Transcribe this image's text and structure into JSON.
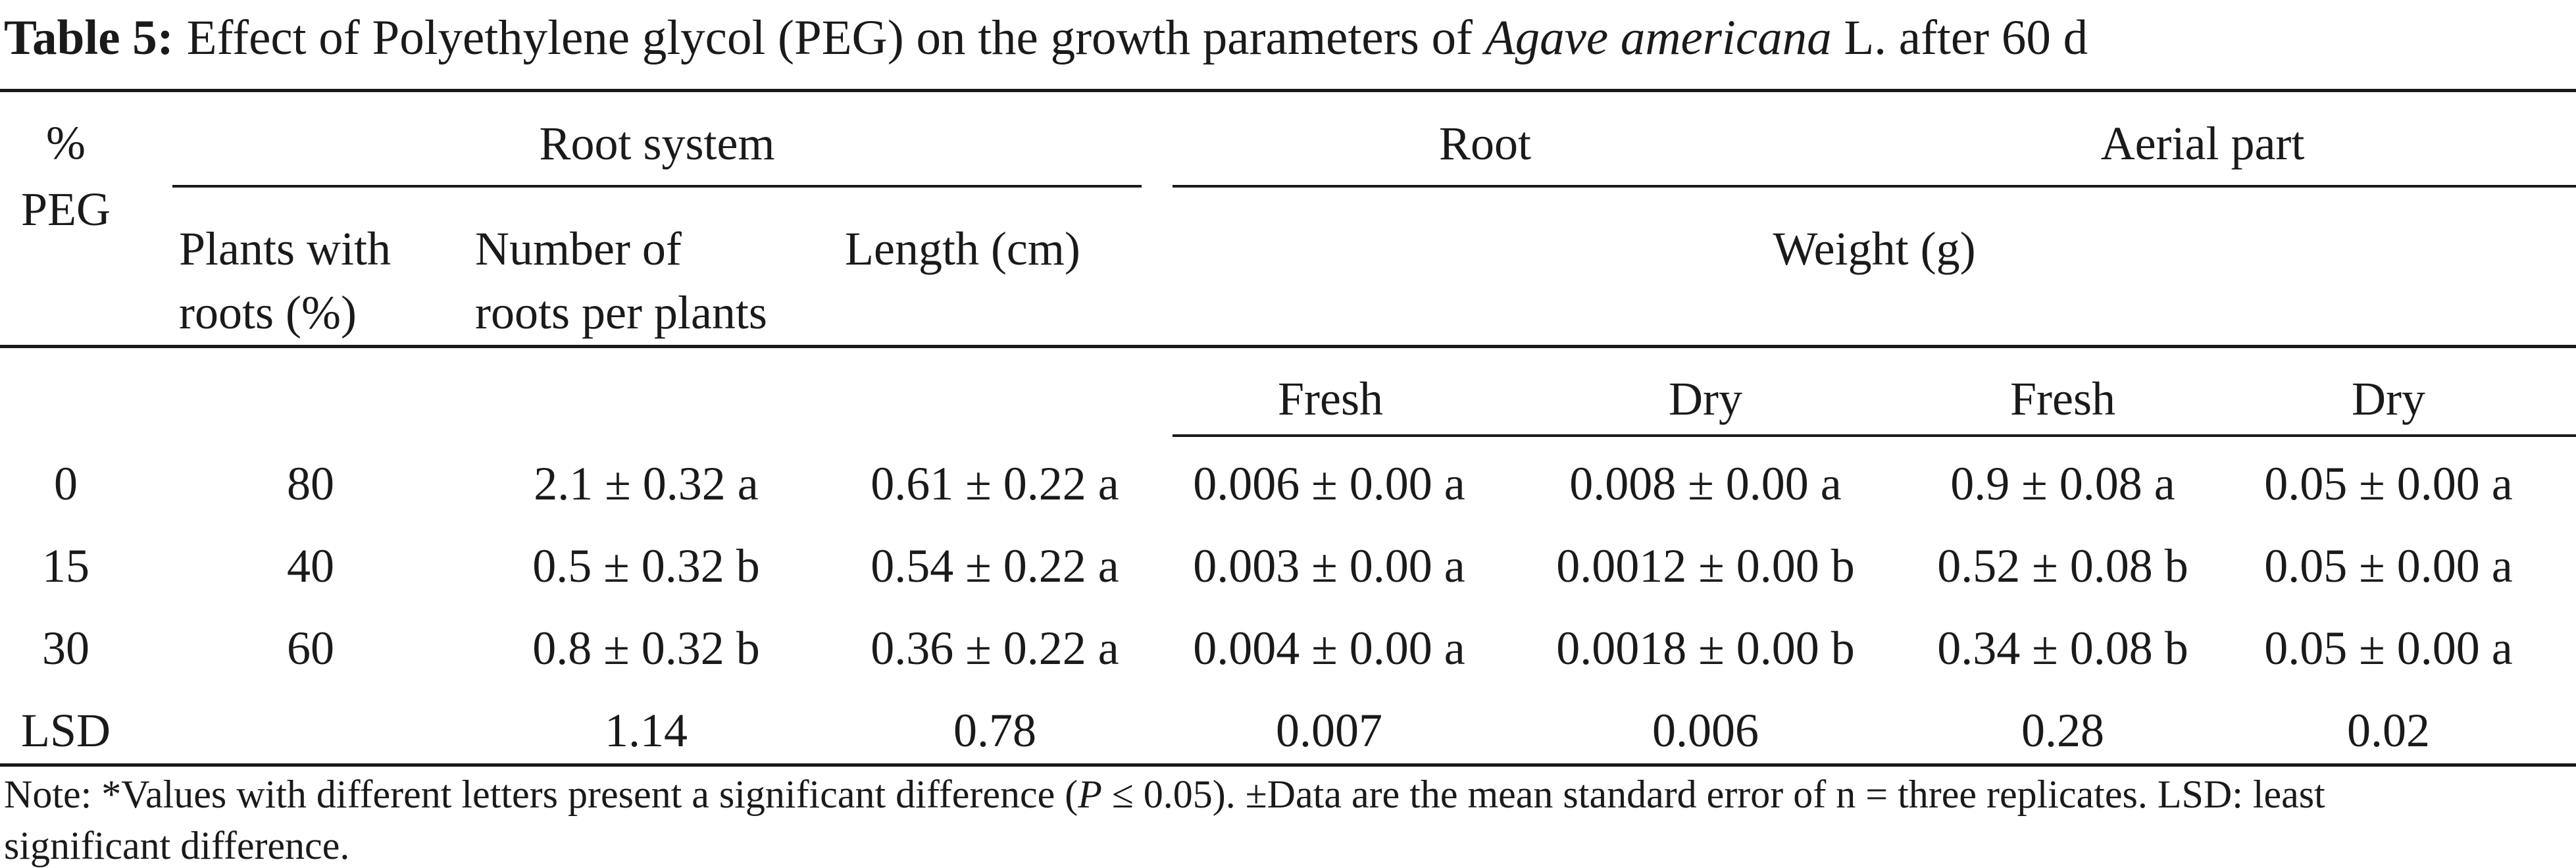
{
  "caption": {
    "label": "Table 5:",
    "text_before": "Effect of Polyethylene glycol (PEG) on the growth parameters of ",
    "species": "Agave americana",
    "text_after": " L. after 60 d"
  },
  "headers": {
    "peg": [
      "%",
      "PEG"
    ],
    "root_system": "Root system",
    "root": "Root",
    "aerial_part": "Aerial part",
    "plants_with_roots": [
      "Plants with",
      "roots (%)"
    ],
    "number_of_roots": [
      "Number of",
      "roots per plants"
    ],
    "length": "Length (cm)",
    "weight": "Weight (g)",
    "root_fresh": "Fresh",
    "root_dry": "Dry",
    "aerial_fresh": "Fresh",
    "aerial_dry": "Dry"
  },
  "rows": [
    {
      "peg": "0",
      "plants": "80",
      "number": "2.1 ± 0.32 a",
      "length": "0.61 ± 0.22 a",
      "root_fresh": "0.006 ± 0.00 a",
      "root_dry": "0.008 ± 0.00 a",
      "aerial_fresh": "0.9 ± 0.08 a",
      "aerial_dry": "0.05 ± 0.00 a"
    },
    {
      "peg": "15",
      "plants": "40",
      "number": "0.5 ± 0.32 b",
      "length": "0.54 ± 0.22 a",
      "root_fresh": "0.003 ± 0.00 a",
      "root_dry": "0.0012 ± 0.00 b",
      "aerial_fresh": "0.52 ± 0.08 b",
      "aerial_dry": "0.05 ± 0.00 a"
    },
    {
      "peg": "30",
      "plants": "60",
      "number": "0.8 ± 0.32 b",
      "length": "0.36 ± 0.22 a",
      "root_fresh": "0.004 ± 0.00 a",
      "root_dry": "0.0018 ± 0.00 b",
      "aerial_fresh": "0.34 ± 0.08 b",
      "aerial_dry": "0.05 ± 0.00 a"
    },
    {
      "peg": "LSD",
      "plants": "",
      "number": "1.14",
      "length": "0.78",
      "root_fresh": "0.007",
      "root_dry": "0.006",
      "aerial_fresh": "0.28",
      "aerial_dry": "0.02"
    }
  ],
  "note": {
    "before_p": "Note: *Values with different letters present a significant difference (",
    "p_symbol": "P",
    "after_p": " ≤ 0.05). ±Data are the mean standard error of n = three replicates. LSD: least",
    "line2": "significant difference."
  }
}
